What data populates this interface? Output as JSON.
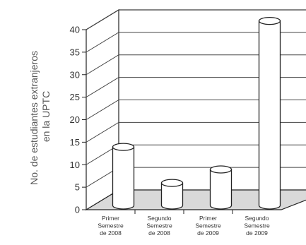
{
  "chart_data": {
    "type": "bar",
    "style": "3d-cylinder",
    "ylabel": [
      "No. de estudiantes extranjeros",
      "en la UPTC"
    ],
    "ylim": [
      0,
      40
    ],
    "yticks": [
      0,
      5,
      10,
      15,
      20,
      25,
      30,
      35,
      40
    ],
    "grid": true,
    "categories": [
      [
        "Primer",
        "Semestre",
        "de 2008"
      ],
      [
        "Segundo",
        "Semestre",
        "de 2008"
      ],
      [
        "Primer",
        "Semestre",
        "de 2009"
      ],
      [
        "Segundo",
        "Semestre",
        "de 2009"
      ]
    ],
    "values": [
      13,
      5,
      8,
      41
    ],
    "colors": {
      "bar_fill": "#ffffff",
      "outline": "#222222",
      "floor": "#d9d9d9",
      "grid": "#444444"
    }
  }
}
